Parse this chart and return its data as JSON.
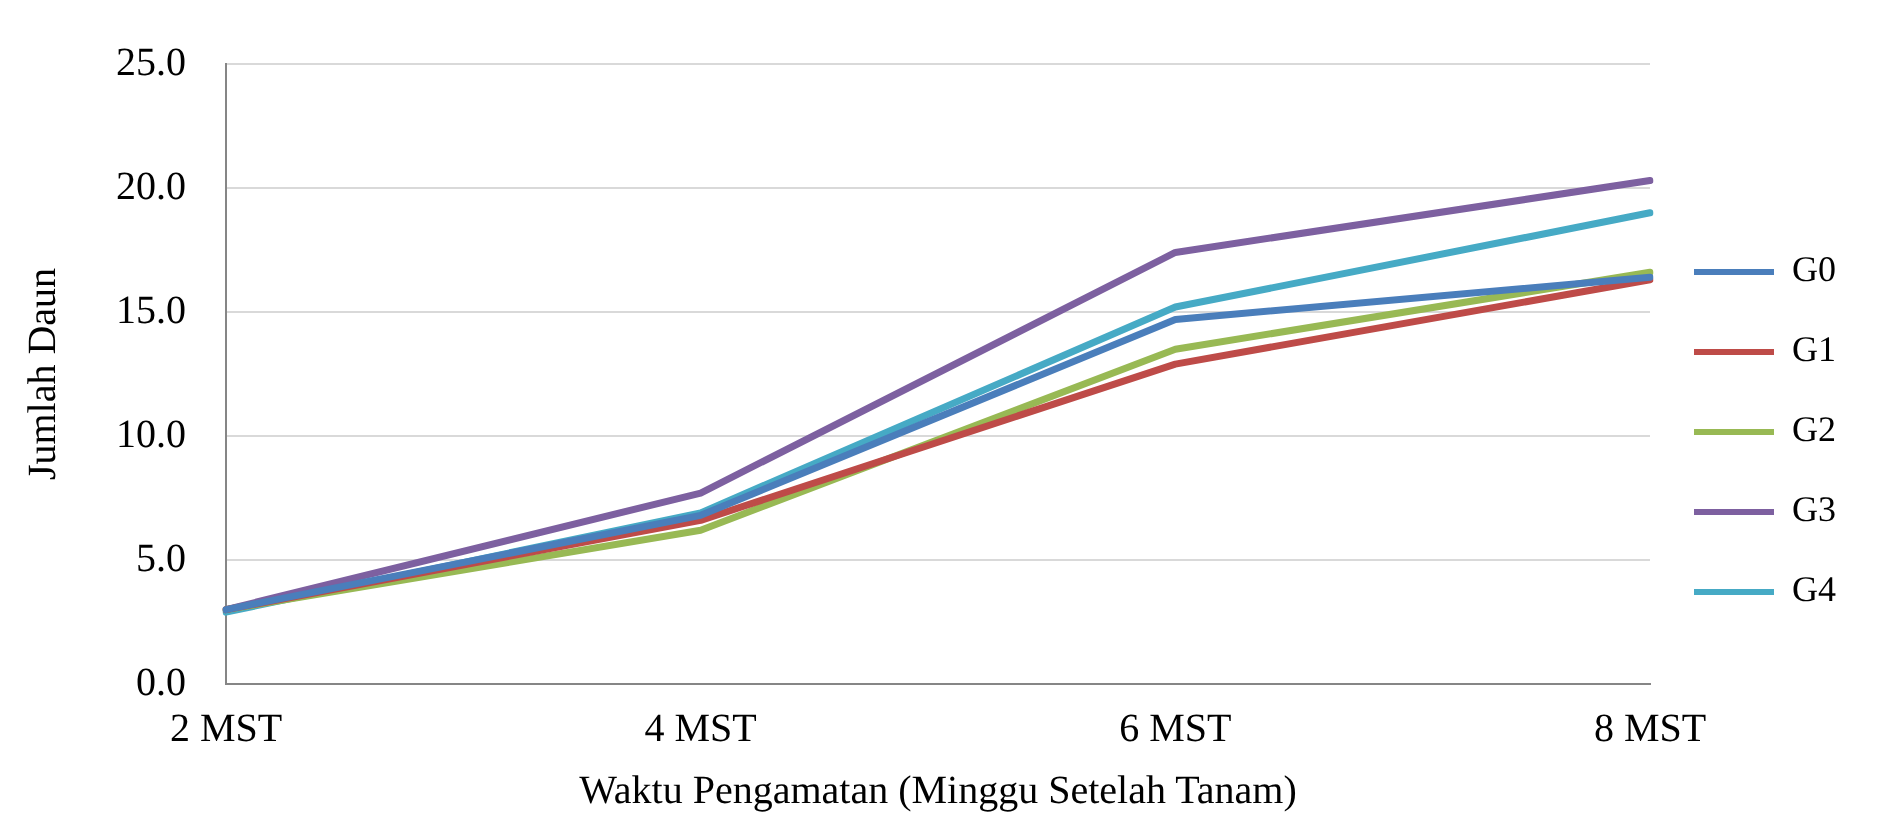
{
  "chart_data": {
    "type": "line",
    "xlabel": "Waktu Pengamatan (Minggu Setelah Tanam)",
    "ylabel": "Jumlah Daun",
    "categories": [
      "2 MST",
      "4 MST",
      "6 MST",
      "8 MST"
    ],
    "series": [
      {
        "name": "G0",
        "color": "#4a7ebb",
        "values": [
          3.0,
          6.8,
          14.7,
          16.4
        ]
      },
      {
        "name": "G1",
        "color": "#be4b48",
        "values": [
          3.0,
          6.6,
          12.9,
          16.3
        ]
      },
      {
        "name": "G2",
        "color": "#98b954",
        "values": [
          3.0,
          6.2,
          13.5,
          16.6
        ]
      },
      {
        "name": "G3",
        "color": "#7d60a0",
        "values": [
          3.0,
          7.7,
          17.4,
          20.3
        ]
      },
      {
        "name": "G4",
        "color": "#46aac5",
        "values": [
          2.9,
          6.9,
          15.2,
          19.0
        ]
      }
    ],
    "ylim": [
      0,
      25
    ],
    "yticks": [
      {
        "value": 0,
        "label": "0.0"
      },
      {
        "value": 5,
        "label": "5.0"
      },
      {
        "value": 10,
        "label": "10.0"
      },
      {
        "value": 15,
        "label": "15.0"
      },
      {
        "value": 20,
        "label": "20.0"
      },
      {
        "value": 25,
        "label": "25.0"
      }
    ],
    "grid": "y",
    "legend": "right",
    "marker": "none"
  }
}
